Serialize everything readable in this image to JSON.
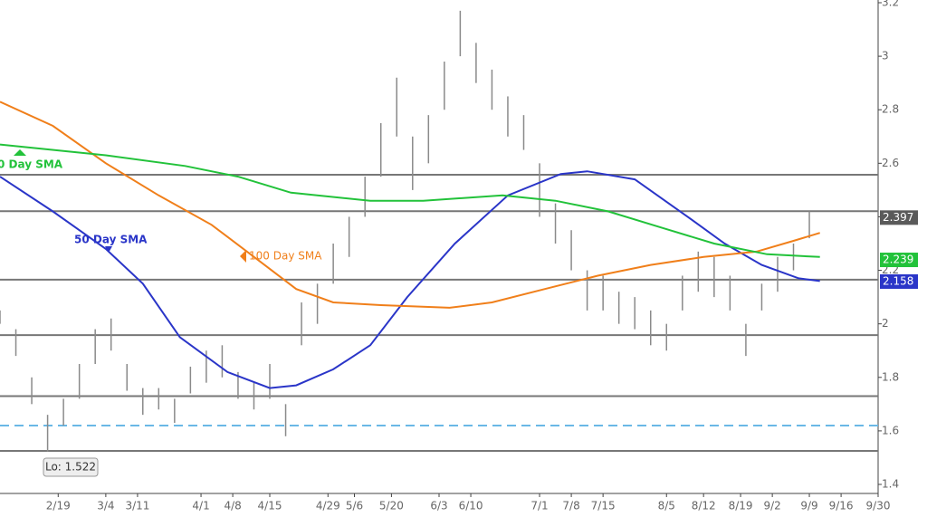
{
  "chart_data": {
    "type": "ohlc",
    "xlim": [
      0,
      166
    ],
    "ylim": [
      1.4,
      3.2
    ],
    "yticks": [
      1.4,
      1.6,
      1.8,
      2,
      2.2,
      2.4,
      2.6,
      2.8,
      3,
      3.2
    ],
    "xticks": [
      {
        "value": 11,
        "label": "2/19"
      },
      {
        "value": 20,
        "label": "3/4"
      },
      {
        "value": 26,
        "label": "3/11"
      },
      {
        "value": 38,
        "label": "4/1"
      },
      {
        "value": 44,
        "label": "4/8"
      },
      {
        "value": 51,
        "label": "4/15"
      },
      {
        "value": 62,
        "label": "4/29"
      },
      {
        "value": 67,
        "label": "5/6"
      },
      {
        "value": 74,
        "label": "5/20"
      },
      {
        "value": 83,
        "label": "6/3"
      },
      {
        "value": 89,
        "label": "6/10"
      },
      {
        "value": 102,
        "label": "7/1"
      },
      {
        "value": 108,
        "label": "7/8"
      },
      {
        "value": 114,
        "label": "7/15"
      },
      {
        "value": 126,
        "label": "8/5"
      },
      {
        "value": 133,
        "label": "8/12"
      },
      {
        "value": 140,
        "label": "8/19"
      },
      {
        "value": 146,
        "label": "9/2"
      },
      {
        "value": 153,
        "label": "9/9"
      },
      {
        "value": 159,
        "label": "9/16"
      },
      {
        "value": 166,
        "label": "9/30"
      }
    ],
    "bar_color": "#8a8a8a",
    "x": [
      0,
      3,
      6,
      9,
      12,
      15,
      18,
      21,
      24,
      27,
      30,
      33,
      36,
      39,
      42,
      45,
      48,
      51,
      54,
      57,
      60,
      63,
      66,
      69,
      72,
      75,
      78,
      81,
      84,
      87,
      90,
      93,
      96,
      99,
      102,
      105,
      108,
      111,
      114,
      117,
      120,
      123,
      126,
      129,
      132,
      135,
      138,
      141,
      144,
      147,
      150,
      153
    ],
    "high": [
      2.05,
      1.98,
      1.8,
      1.66,
      1.72,
      1.85,
      1.98,
      2.02,
      1.85,
      1.76,
      1.76,
      1.72,
      1.84,
      1.9,
      1.92,
      1.82,
      1.78,
      1.85,
      1.7,
      2.08,
      2.15,
      2.3,
      2.4,
      2.55,
      2.75,
      2.92,
      2.7,
      2.78,
      2.98,
      3.17,
      3.05,
      2.95,
      2.85,
      2.78,
      2.6,
      2.45,
      2.35,
      2.2,
      2.18,
      2.12,
      2.1,
      2.05,
      2.0,
      2.18,
      2.27,
      2.25,
      2.18,
      2.0,
      2.15,
      2.25,
      2.3,
      2.42
    ],
    "low": [
      2.0,
      1.88,
      1.7,
      1.522,
      1.62,
      1.72,
      1.85,
      1.9,
      1.75,
      1.66,
      1.68,
      1.63,
      1.74,
      1.78,
      1.8,
      1.72,
      1.68,
      1.72,
      1.58,
      1.92,
      2.0,
      2.15,
      2.25,
      2.4,
      2.55,
      2.7,
      2.5,
      2.6,
      2.8,
      3.0,
      2.9,
      2.8,
      2.7,
      2.65,
      2.4,
      2.3,
      2.2,
      2.05,
      2.05,
      2.0,
      1.98,
      1.92,
      1.9,
      2.05,
      2.12,
      2.1,
      2.05,
      1.88,
      2.05,
      2.12,
      2.2,
      2.32
    ],
    "sma": [
      {
        "name": "50 Day SMA",
        "color": "#2a35c8",
        "x": [
          0,
          10,
          20,
          27,
          34,
          43,
          51,
          56,
          63,
          70,
          77,
          86,
          96,
          106,
          111,
          120,
          130,
          137,
          144,
          151,
          155
        ],
        "values": [
          2.55,
          2.42,
          2.28,
          2.15,
          1.95,
          1.82,
          1.76,
          1.77,
          1.83,
          1.92,
          2.1,
          2.3,
          2.48,
          2.56,
          2.57,
          2.54,
          2.4,
          2.3,
          2.22,
          2.17,
          2.16
        ]
      },
      {
        "name": "100  Day SMA",
        "color": "#f07f1a",
        "x": [
          0,
          10,
          20,
          30,
          40,
          50,
          56,
          63,
          72,
          85,
          93,
          103,
          113,
          123,
          133,
          143,
          150,
          155
        ],
        "values": [
          2.83,
          2.74,
          2.6,
          2.48,
          2.37,
          2.22,
          2.13,
          2.08,
          2.07,
          2.06,
          2.08,
          2.13,
          2.18,
          2.22,
          2.25,
          2.27,
          2.31,
          2.34
        ]
      },
      {
        "name": "0 Day SMA",
        "color": "#22c23a",
        "x": [
          0,
          20,
          35,
          45,
          55,
          70,
          80,
          95,
          105,
          115,
          125,
          135,
          145,
          155
        ],
        "values": [
          2.67,
          2.63,
          2.59,
          2.55,
          2.49,
          2.46,
          2.46,
          2.48,
          2.46,
          2.42,
          2.36,
          2.3,
          2.26,
          2.25
        ]
      }
    ],
    "levels": [
      2.557,
      2.421,
      2.165,
      1.958,
      1.73,
      1.525
    ],
    "dashed_level": 1.62,
    "last_values": [
      {
        "value": 2.397,
        "color": "#5a5a5a"
      },
      {
        "value": 2.239,
        "color": "#22c23a"
      },
      {
        "value": 2.158,
        "color": "#2a35c8"
      }
    ],
    "low_annotation": "Lo: 1.522"
  }
}
